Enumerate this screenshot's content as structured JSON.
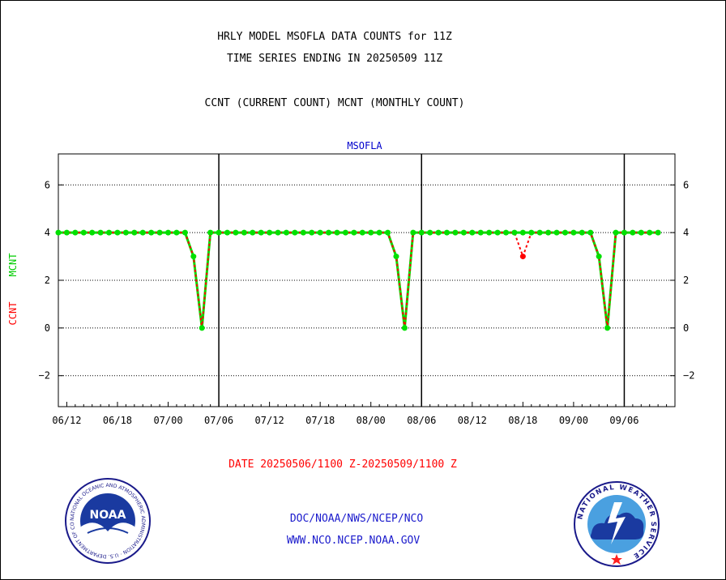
{
  "header": {
    "title_line1": "HRLY MODEL MSOFLA DATA COUNTS for 11Z",
    "title_line2": "TIME SERIES ENDING IN 20250509 11Z",
    "subtitle": "CCNT (CURRENT COUNT) MCNT (MONTHLY COUNT)"
  },
  "footer": {
    "date_range": "DATE 20250506/1100 Z-20250509/1100 Z",
    "org_path": "DOC/NOAA/NWS/NCEP/NCO",
    "website": "WWW.NCO.NCEP.NOAA.GOV"
  },
  "logos": {
    "noaa_text": "NOAA",
    "noaa_ring_text": "NATIONAL OCEANIC AND ATMOSPHERIC ADMINISTRATION · U.S. DEPARTMENT OF COMMERCE",
    "nws_ring_text": "NATIONAL WEATHER SERVICE"
  },
  "colors": {
    "ccnt": "#ff0000",
    "mcnt": "#00e000",
    "title_blue": "#0000cc",
    "date_red": "#ff0000",
    "link_blue": "#1a1acc"
  },
  "chart_data": {
    "type": "line",
    "title": "MSOFLA",
    "ylabel_ccnt": "CCNT",
    "ylabel_mcnt": "MCNT",
    "ylim": [
      -3.3,
      7.3
    ],
    "yticks": [
      -2,
      0,
      2,
      4,
      6
    ],
    "xlim": [
      0,
      73
    ],
    "xtick_labels": [
      "06/12",
      "06/18",
      "07/00",
      "07/06",
      "07/12",
      "07/18",
      "08/00",
      "08/06",
      "08/12",
      "08/18",
      "09/00",
      "09/06"
    ],
    "xtick_positions": [
      1,
      7,
      13,
      19,
      25,
      31,
      37,
      43,
      49,
      55,
      61,
      67
    ],
    "day_boundaries": [
      19,
      43,
      67
    ],
    "grid_y": true,
    "series": [
      {
        "name": "CCNT",
        "values": [
          4,
          4,
          4,
          4,
          4,
          4,
          4,
          4,
          4,
          4,
          4,
          4,
          4,
          4,
          4,
          4,
          3,
          0,
          4,
          4,
          4,
          4,
          4,
          4,
          4,
          4,
          4,
          4,
          4,
          4,
          4,
          4,
          4,
          4,
          4,
          4,
          4,
          4,
          4,
          4,
          3,
          0,
          4,
          4,
          4,
          4,
          4,
          4,
          4,
          4,
          4,
          4,
          4,
          4,
          4,
          3,
          4,
          4,
          4,
          4,
          4,
          4,
          4,
          4,
          3,
          0,
          4,
          4,
          4,
          4,
          4,
          4
        ]
      },
      {
        "name": "MCNT",
        "values": [
          4,
          4,
          4,
          4,
          4,
          4,
          4,
          4,
          4,
          4,
          4,
          4,
          4,
          4,
          4,
          4,
          3,
          0,
          4,
          4,
          4,
          4,
          4,
          4,
          4,
          4,
          4,
          4,
          4,
          4,
          4,
          4,
          4,
          4,
          4,
          4,
          4,
          4,
          4,
          4,
          3,
          0,
          4,
          4,
          4,
          4,
          4,
          4,
          4,
          4,
          4,
          4,
          4,
          4,
          4,
          4,
          4,
          4,
          4,
          4,
          4,
          4,
          4,
          4,
          3,
          0,
          4,
          4,
          4,
          4,
          4,
          4
        ]
      }
    ]
  }
}
